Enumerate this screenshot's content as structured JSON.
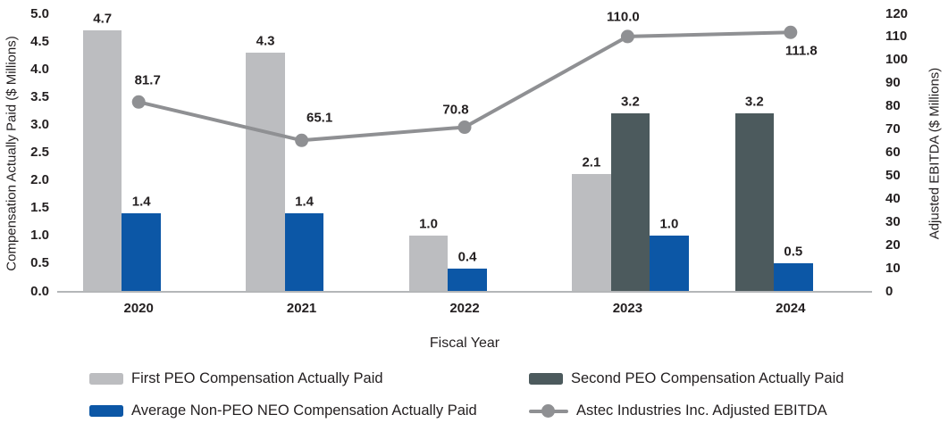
{
  "chart_data": {
    "type": "combo-bar-line",
    "categories": [
      "2020",
      "2021",
      "2022",
      "2023",
      "2024"
    ],
    "bar_series": [
      {
        "name": "First PEO Compensation Actually Paid",
        "color": "#bcbdc0",
        "values": [
          4.7,
          4.3,
          1.0,
          2.1,
          null
        ]
      },
      {
        "name": "Second PEO Compensation Actually Paid",
        "color": "#4c5a5d",
        "values": [
          null,
          null,
          null,
          3.2,
          3.2
        ]
      },
      {
        "name": "Average Non-PEO NEO Compensation Actually Paid",
        "color": "#0c57a6",
        "values": [
          1.4,
          1.4,
          0.4,
          1.0,
          0.5
        ]
      }
    ],
    "line_series": {
      "name": "Astec Industries Inc. Adjusted EBITDA",
      "color": "#8f9093",
      "values": [
        81.7,
        65.1,
        70.8,
        110.0,
        111.8
      ]
    },
    "left_axis": {
      "title": "Compensation Actually Paid ($ Millions)",
      "min": 0,
      "max": 5,
      "step": 0.5,
      "tick_labels": [
        "5.0",
        "4.5",
        "4.0",
        "3.5",
        "3.0",
        "2.5",
        "2.0",
        "1.5",
        "1.0",
        "0.5",
        "0.0"
      ]
    },
    "right_axis": {
      "title": "Adjusted EBITDA ($ Millions)",
      "min": 0,
      "max": 120,
      "step": 10,
      "tick_labels": [
        "120",
        "110",
        "100",
        "90",
        "80",
        "70",
        "60",
        "50",
        "40",
        "30",
        "20",
        "10",
        "0"
      ]
    },
    "xlabel": "Fiscal Year",
    "grid": false,
    "legend_position": "bottom-two-columns",
    "legend": {
      "column1": [
        {
          "type": "bar",
          "label": "First PEO Compensation Actually Paid",
          "color": "#bcbdc0"
        },
        {
          "type": "bar",
          "label": "Average Non-PEO NEO Compensation Actually Paid",
          "color": "#0c57a6"
        }
      ],
      "column2": [
        {
          "type": "bar",
          "label": "Second PEO Compensation Actually Paid",
          "color": "#4c5a5d"
        },
        {
          "type": "line",
          "label": "Astec Industries Inc. Adjusted EBITDA",
          "color": "#8f9093"
        }
      ]
    },
    "colors": {
      "text": "#231f20",
      "axis_line": "#b4b6b8"
    }
  }
}
